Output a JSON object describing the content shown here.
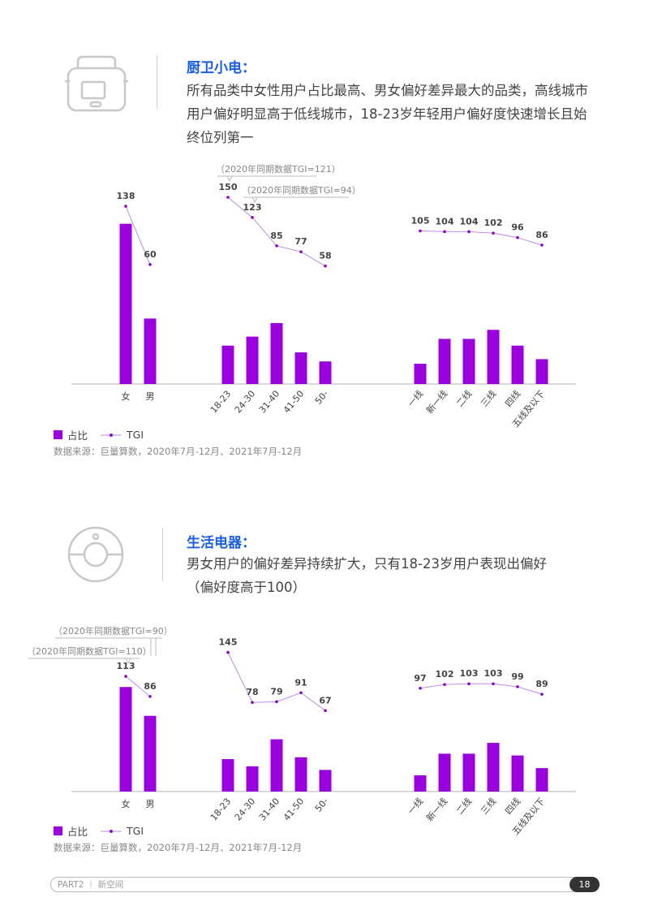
{
  "sections": [
    {
      "title": "厨卫小电：",
      "lines": [
        "所有品类中女性用户占比最高、男女偏好差异最大的品类，高线城市",
        "用户偏好明显高于低线城市，18-23岁年轻用户偏好度快速增长且始",
        "终位列第一"
      ],
      "icon": "rice-cooker-icon",
      "annotations": [
        "（2020年同期数据TGI=121）",
        "（2020年同期数据TGI=94）"
      ],
      "legend": {
        "share": "占比",
        "tgi": "TGI"
      },
      "source": "数据来源：巨量算数，2020年7月-12月、2021年7月-12月"
    },
    {
      "title": "生活电器：",
      "lines": [
        "男女用户的偏好差异持续扩大，只有18-23岁用户表现出偏好",
        "（偏好度高于100）"
      ],
      "icon": "appliance-circle-icon",
      "annotations": [
        "（2020年同期数据TGI=90）",
        "（2020年同期数据TGI=110）"
      ],
      "legend": {
        "share": "占比",
        "tgi": "TGI"
      },
      "source": "数据来源：巨量算数，2020年7月-12月、2021年7月-12月"
    }
  ],
  "footer": {
    "part": "PART2 ｜  新空间",
    "page": "18"
  },
  "colors": {
    "bar": "#9900dd",
    "line": "#b98ee6",
    "dot": "#8800cc",
    "title": "#1a5ee6"
  },
  "chart_data": [
    {
      "type": "bar",
      "title": "厨卫小电",
      "series_names": [
        "占比",
        "TGI"
      ],
      "panels": [
        {
          "categories": [
            "女",
            "男"
          ],
          "share": [
            71,
            29
          ],
          "tgi": [
            138,
            60
          ]
        },
        {
          "categories": [
            "18-23",
            "24-30",
            "31-40",
            "41-50",
            "50-"
          ],
          "share": [
            17,
            21,
            27,
            14,
            10
          ],
          "tgi": [
            150,
            123,
            85,
            77,
            58
          ]
        },
        {
          "categories": [
            "一线",
            "新一线",
            "二线",
            "三线",
            "四线",
            "五线及以下"
          ],
          "share": [
            9,
            20,
            20,
            24,
            17,
            11
          ],
          "tgi": [
            105,
            104,
            104,
            102,
            96,
            86
          ]
        }
      ]
    },
    {
      "type": "bar",
      "title": "生活电器",
      "series_names": [
        "占比",
        "TGI"
      ],
      "panels": [
        {
          "categories": [
            "女",
            "男"
          ],
          "share": [
            58,
            42
          ],
          "tgi": [
            113,
            86
          ]
        },
        {
          "categories": [
            "18-23",
            "24-30",
            "31-40",
            "41-50",
            "50-"
          ],
          "share": [
            18,
            14,
            29,
            19,
            12
          ],
          "tgi": [
            145,
            78,
            79,
            91,
            67
          ]
        },
        {
          "categories": [
            "一线",
            "新一线",
            "二线",
            "三线",
            "四线",
            "五线及以下"
          ],
          "share": [
            9,
            21,
            21,
            27,
            20,
            13
          ],
          "tgi": [
            97,
            102,
            103,
            103,
            99,
            89
          ]
        }
      ]
    }
  ]
}
